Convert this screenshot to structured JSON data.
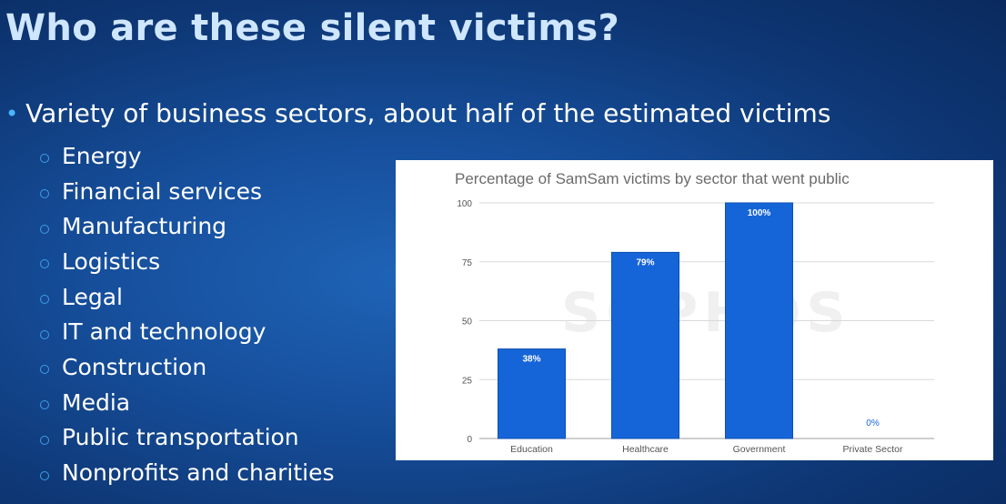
{
  "slide": {
    "title": "Who are these silent victims?",
    "main_bullet": "Variety of business sectors, about half of the estimated victims",
    "sectors": [
      "Energy",
      "Financial services",
      "Manufacturing",
      "Logistics",
      "Legal",
      "IT and technology",
      "Construction",
      "Media",
      "Public transportation",
      "Nonprofits and charities"
    ]
  },
  "chart_data": {
    "type": "bar",
    "title": "Percentage of SamSam victims by sector that went public",
    "categories": [
      "Education",
      "Healthcare",
      "Government",
      "Private Sector"
    ],
    "values": [
      38,
      79,
      100,
      0
    ],
    "data_labels": [
      "38%",
      "79%",
      "100%",
      "0%"
    ],
    "ylim": [
      0,
      100
    ],
    "yticks": [
      0,
      25,
      50,
      75,
      100
    ],
    "grid": true,
    "legend": "none",
    "watermark": "SOPHOS",
    "bar_color": "#1565d8"
  }
}
